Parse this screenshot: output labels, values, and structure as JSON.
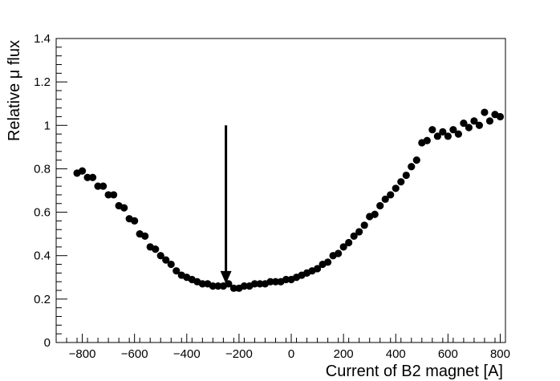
{
  "chart_data": {
    "type": "scatter",
    "xlabel": "Current of B2 magnet [A]",
    "ylabel": "Relative μ flux",
    "xlim": [
      -900,
      820
    ],
    "ylim": [
      0,
      1.4
    ],
    "x_ticks": [
      -800,
      -600,
      -400,
      -200,
      0,
      200,
      400,
      600,
      800
    ],
    "x_tick_labels": [
      "−800",
      "−600",
      "−400",
      "−200",
      "0",
      "200",
      "400",
      "600",
      "800"
    ],
    "y_ticks": [
      0,
      0.2,
      0.4,
      0.6,
      0.8,
      1,
      1.2,
      1.4
    ],
    "y_tick_labels": [
      "0",
      "0.2",
      "0.4",
      "0.6",
      "0.8",
      "1",
      "1.2",
      "1.4"
    ],
    "grid": false,
    "legend": "none",
    "marker_color": "#000000",
    "series": [
      {
        "x": [
          -820,
          -800,
          -780,
          -760,
          -740,
          -720,
          -700,
          -680,
          -660,
          -640,
          -620,
          -600,
          -580,
          -560,
          -540,
          -520,
          -500,
          -480,
          -460,
          -440,
          -420,
          -400,
          -380,
          -360,
          -340,
          -320,
          -300,
          -280,
          -260,
          -240,
          -220,
          -200,
          -180,
          -160,
          -140,
          -120,
          -100,
          -80,
          -60,
          -40,
          -20,
          0,
          20,
          40,
          60,
          80,
          100,
          120,
          140,
          160,
          180,
          200,
          220,
          240,
          260,
          280,
          300,
          320,
          340,
          360,
          380,
          400,
          420,
          440,
          460,
          480,
          500,
          520,
          540,
          560,
          580,
          600,
          620,
          640,
          660,
          680,
          700,
          720,
          740,
          760,
          780,
          800
        ],
        "y": [
          0.78,
          0.79,
          0.76,
          0.76,
          0.72,
          0.72,
          0.68,
          0.68,
          0.63,
          0.62,
          0.57,
          0.56,
          0.5,
          0.49,
          0.44,
          0.43,
          0.4,
          0.38,
          0.36,
          0.33,
          0.31,
          0.3,
          0.29,
          0.28,
          0.27,
          0.27,
          0.26,
          0.26,
          0.26,
          0.27,
          0.25,
          0.25,
          0.26,
          0.26,
          0.27,
          0.27,
          0.27,
          0.28,
          0.28,
          0.28,
          0.29,
          0.29,
          0.3,
          0.31,
          0.32,
          0.33,
          0.34,
          0.36,
          0.37,
          0.4,
          0.41,
          0.44,
          0.46,
          0.49,
          0.51,
          0.54,
          0.58,
          0.59,
          0.63,
          0.66,
          0.68,
          0.71,
          0.74,
          0.77,
          0.81,
          0.84,
          0.92,
          0.93,
          0.98,
          0.95,
          0.97,
          0.95,
          0.98,
          0.96,
          1.01,
          0.99,
          1.02,
          1.0,
          1.06,
          1.02,
          1.05,
          1.04
        ]
      }
    ],
    "annotations": [
      {
        "type": "arrow",
        "x": -250,
        "y_from": 1.0,
        "y_to": 0.27
      }
    ]
  }
}
